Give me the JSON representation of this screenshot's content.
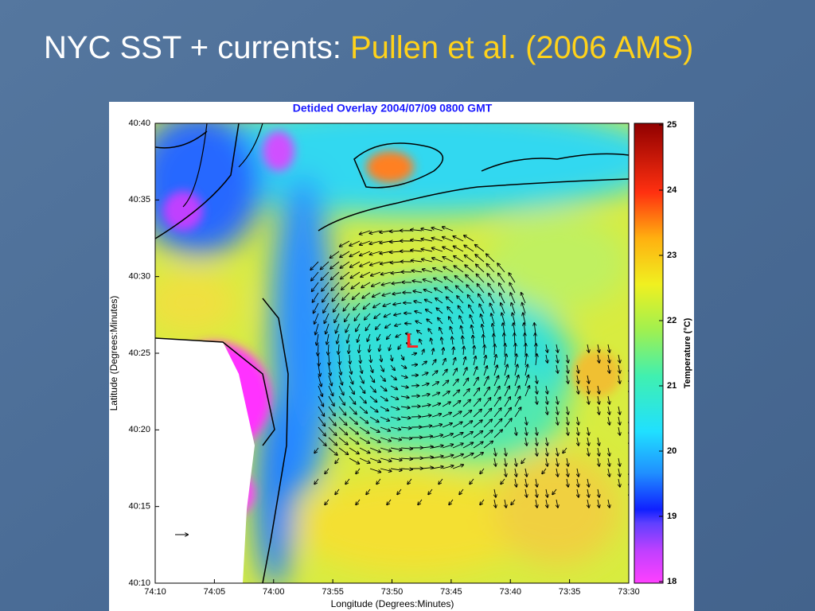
{
  "slide": {
    "title": "NYC SST + currents:",
    "title_highlight": "Pullen et al. (2006 AMS)"
  },
  "figure": {
    "title": "Detided Overlay 2004/07/09 0800 GMT",
    "x_label": "Longitude (Degrees:Minutes)",
    "y_label": "Latitude (Degrees:Minutes)",
    "x_ticks": [
      "74:10",
      "74:05",
      "74:00",
      "73:55",
      "73:50",
      "73:45",
      "73:40",
      "73:35",
      "73:30"
    ],
    "y_ticks": [
      "40:40",
      "40:35",
      "40:30",
      "40:25",
      "40:20",
      "40:15",
      "40:10"
    ],
    "annotation": "L",
    "colorbar": {
      "label": "Temperature (°C)",
      "ticks": [
        25,
        24,
        23,
        22,
        21,
        20,
        19,
        18
      ]
    }
  }
}
